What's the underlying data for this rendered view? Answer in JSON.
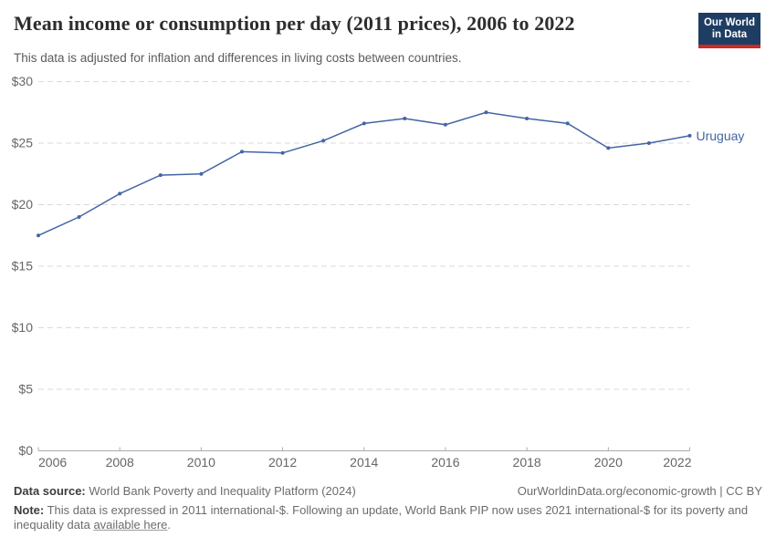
{
  "header": {
    "title": "Mean income or consumption per day (2011 prices), 2006 to 2022",
    "subtitle": "This data is adjusted for inflation and differences in living costs between countries.",
    "logo": {
      "line1": "Our World",
      "line2": "in Data"
    }
  },
  "colors": {
    "line": "#4365a4",
    "logo_navy": "#1d3d63",
    "logo_red": "#cc2a22",
    "grid": "#dadada",
    "axis": "#ababab",
    "tick_label": "#666666"
  },
  "chart_data": {
    "type": "line",
    "title": "Mean income or consumption per day (2011 prices), 2006 to 2022",
    "xlabel": "",
    "ylabel": "",
    "x": [
      2006,
      2007,
      2008,
      2009,
      2010,
      2011,
      2012,
      2013,
      2014,
      2015,
      2016,
      2017,
      2018,
      2019,
      2020,
      2021,
      2022
    ],
    "series": [
      {
        "name": "Uruguay",
        "color": "#4365a4",
        "values": [
          17.5,
          19.0,
          20.9,
          22.4,
          22.5,
          24.3,
          24.2,
          25.2,
          26.6,
          27.0,
          26.5,
          27.5,
          27.0,
          26.6,
          24.6,
          25.0,
          25.6
        ]
      }
    ],
    "ylim": [
      0,
      30
    ],
    "yticks": [
      0,
      5,
      10,
      15,
      20,
      25,
      30
    ],
    "ytick_prefix": "$",
    "xticks": [
      2006,
      2008,
      2010,
      2012,
      2014,
      2016,
      2018,
      2020,
      2022
    ],
    "grid": "horizontal-dashed",
    "legend_position": "end-of-line-label"
  },
  "footer": {
    "source_label": "Data source:",
    "source_text": " World Bank Poverty and Inequality Platform (2024)",
    "rights": "OurWorldinData.org/economic-growth | CC BY",
    "note_label": "Note:",
    "note_before_link": " This data is expressed in 2011 international-$. Following an update, World Bank PIP now uses 2021 international-$ for its poverty and inequality data ",
    "note_link": "available here",
    "note_after_link": "."
  }
}
